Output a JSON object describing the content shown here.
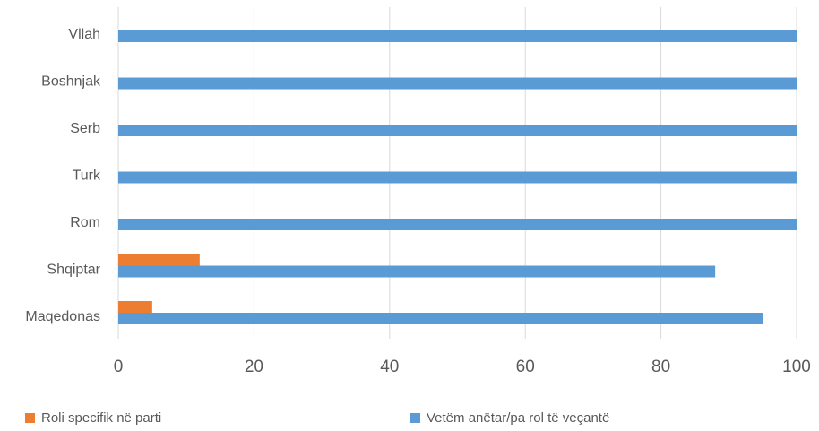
{
  "chart_data": {
    "type": "hbar",
    "categories": [
      "Vllah",
      "Boshnjak",
      "Serb",
      "Turk",
      "Rom",
      "Shqiptar",
      "Maqedonas"
    ],
    "series": [
      {
        "name": "Roli specifik në parti",
        "color": "#ed7d31",
        "values": [
          0,
          0,
          0,
          0,
          0,
          12,
          5
        ]
      },
      {
        "name": "Vetëm anëtar/pa rol të veçantë",
        "color": "#5b9bd5",
        "values": [
          100,
          100,
          100,
          100,
          100,
          88,
          95
        ]
      }
    ],
    "xlim": [
      0,
      100
    ],
    "xticks": [
      0,
      20,
      40,
      60,
      80,
      100
    ],
    "grid": true
  }
}
